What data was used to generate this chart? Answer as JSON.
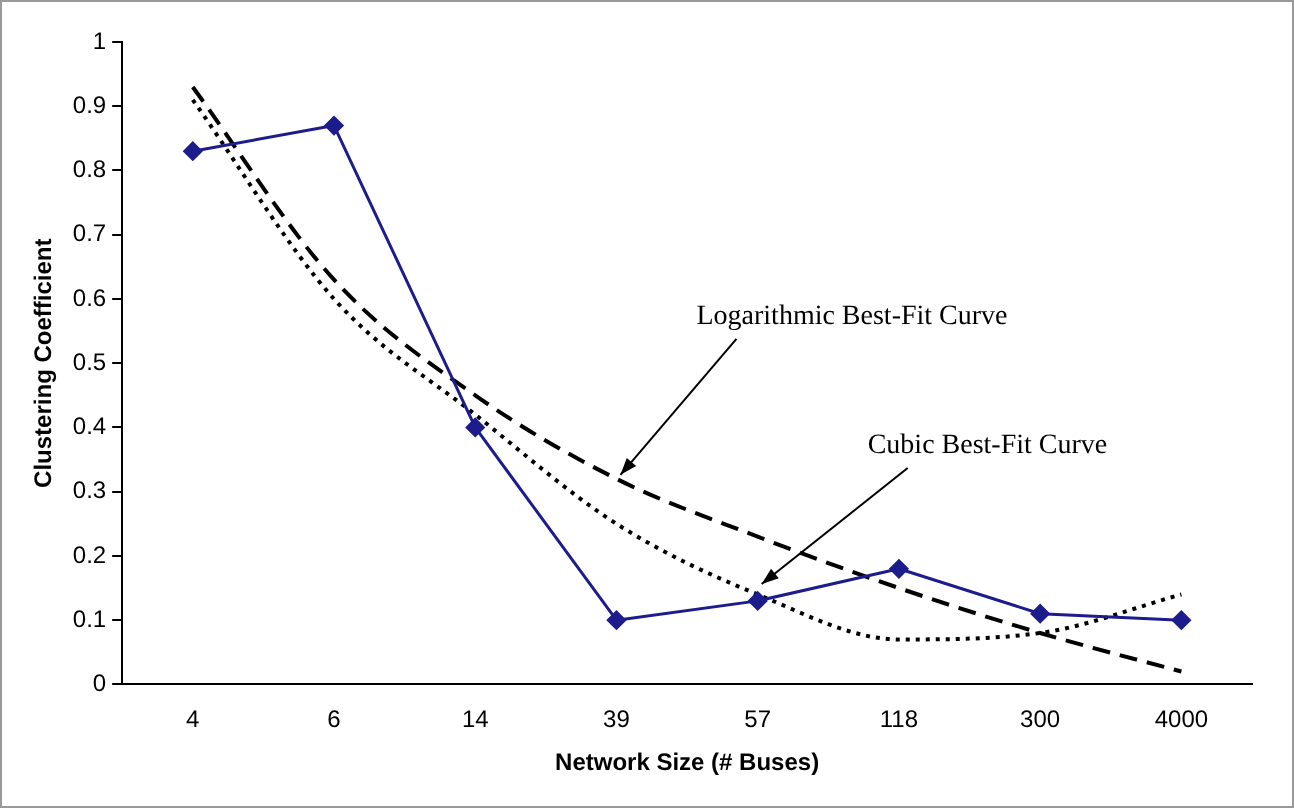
{
  "chart_data": {
    "type": "line",
    "xlabel": "Network Size (# Buses)",
    "ylabel": "Clustering Coefficient",
    "categories": [
      "4",
      "6",
      "14",
      "39",
      "57",
      "118",
      "300",
      "4000"
    ],
    "series": [
      {
        "color": "#1c1c8c",
        "marker": "diamond",
        "line_style": "solid",
        "values": [
          0.83,
          0.87,
          0.4,
          0.1,
          0.13,
          0.18,
          0.11,
          0.1
        ]
      },
      {
        "color": "#000000",
        "marker": "none",
        "line_style": "dashed",
        "values": [
          0.93,
          0.63,
          0.45,
          0.32,
          0.23,
          0.15,
          0.08,
          0.02
        ]
      },
      {
        "color": "#000000",
        "marker": "none",
        "line_style": "dotted",
        "values": [
          0.91,
          0.6,
          0.42,
          0.25,
          0.14,
          0.07,
          0.08,
          0.14
        ]
      }
    ],
    "ylim": [
      0,
      1
    ],
    "yticks": [
      0,
      0.1,
      0.2,
      0.3,
      0.4,
      0.5,
      0.6,
      0.7,
      0.8,
      0.9,
      1
    ],
    "grid": false,
    "legend": false,
    "annotations": [
      {
        "text": "Logarithmic Best-Fit Curve",
        "x": "39",
        "y": 0.32
      },
      {
        "text": "Cubic Best-Fit Curve",
        "x": "57",
        "y": 0.15
      }
    ]
  }
}
